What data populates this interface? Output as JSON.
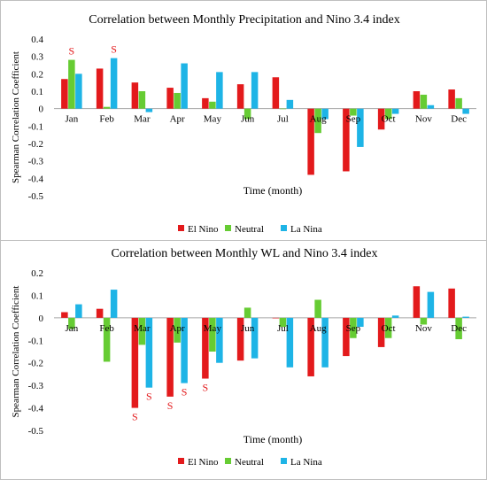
{
  "chart_data": [
    {
      "type": "bar",
      "title": "Correlation between Monthly Precipitation and Nino 3.4 index",
      "xlabel": "Time (month)",
      "ylabel": "Spearman Correlation Coefficient",
      "categories": [
        "Jan",
        "Feb",
        "Mar",
        "Apr",
        "May",
        "Jun",
        "Jul",
        "Aug",
        "Sep",
        "Oct",
        "Nov",
        "Dec"
      ],
      "ylim": [
        -0.5,
        0.4
      ],
      "yticks": [
        "0.4",
        "0.3",
        "0.2",
        "0.1",
        "0",
        "-0.1",
        "-0.2",
        "-0.3",
        "-0.4",
        "-0.5"
      ],
      "grid": false,
      "legend_position": "bottom",
      "series": [
        {
          "name": "El Nino",
          "color": "#e31a1c",
          "values": [
            0.17,
            0.23,
            0.15,
            0.12,
            0.06,
            0.14,
            0.18,
            -0.38,
            -0.36,
            -0.12,
            0.1,
            0.11
          ]
        },
        {
          "name": "Neutral",
          "color": "#66cc33",
          "values": [
            0.28,
            0.01,
            0.1,
            0.09,
            0.04,
            -0.06,
            0.0,
            -0.14,
            -0.04,
            -0.06,
            0.08,
            0.06
          ]
        },
        {
          "name": "La Nina",
          "color": "#1eb4e6",
          "values": [
            0.2,
            0.29,
            -0.02,
            0.26,
            0.21,
            0.21,
            0.05,
            -0.06,
            -0.22,
            -0.03,
            0.02,
            -0.03
          ]
        }
      ],
      "annotations": [
        {
          "text": "S",
          "category": "Jan",
          "series": "Neutral",
          "side": "above"
        },
        {
          "text": "S",
          "category": "Feb",
          "series": "La Nina",
          "side": "above"
        }
      ]
    },
    {
      "type": "bar",
      "title": "Correlation between Monthly WL and Nino 3.4 index",
      "xlabel": "Time (month)",
      "ylabel": "Spearman Correlation Coefficient",
      "categories": [
        "Jan",
        "Feb",
        "Mar",
        "Apr",
        "May",
        "Jun",
        "Jul",
        "Aug",
        "Sep",
        "Oct",
        "Nov",
        "Dec"
      ],
      "ylim": [
        -0.5,
        0.2
      ],
      "yticks": [
        "0.2",
        "0.1",
        "0",
        "-0.1",
        "-0.2",
        "-0.3",
        "-0.4",
        "-0.5"
      ],
      "grid": false,
      "legend_position": "bottom",
      "series": [
        {
          "name": "El Nino",
          "color": "#e31a1c",
          "values": [
            0.025,
            0.04,
            -0.4,
            -0.35,
            -0.27,
            -0.19,
            0.0,
            -0.26,
            -0.17,
            -0.13,
            0.14,
            0.13
          ]
        },
        {
          "name": "Neutral",
          "color": "#66cc33",
          "values": [
            -0.05,
            -0.195,
            -0.12,
            -0.11,
            -0.15,
            0.045,
            -0.04,
            0.08,
            -0.09,
            -0.09,
            -0.03,
            -0.095
          ]
        },
        {
          "name": "La Nina",
          "color": "#1eb4e6",
          "values": [
            0.06,
            0.125,
            -0.31,
            -0.29,
            -0.2,
            -0.18,
            -0.22,
            -0.22,
            -0.04,
            0.01,
            0.115,
            0.005
          ]
        }
      ],
      "annotations": [
        {
          "text": "S",
          "category": "Mar",
          "series": "El Nino",
          "side": "below"
        },
        {
          "text": "S",
          "category": "Mar",
          "series": "La Nina",
          "side": "below"
        },
        {
          "text": "S",
          "category": "Apr",
          "series": "El Nino",
          "side": "below"
        },
        {
          "text": "S",
          "category": "Apr",
          "series": "La Nina",
          "side": "below"
        },
        {
          "text": "S",
          "category": "May",
          "series": "El Nino",
          "side": "below"
        }
      ]
    }
  ]
}
